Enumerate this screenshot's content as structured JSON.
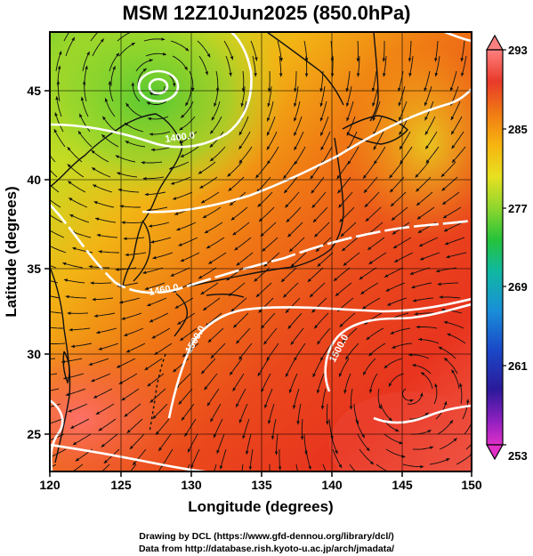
{
  "title": "MSM 12Z10Jun2025 (850.0hPa)",
  "axes": {
    "xlabel": "Longitude (degrees)",
    "ylabel": "Latitude  (degrees)",
    "xticks": [
      "120",
      "125",
      "130",
      "135",
      "140",
      "145",
      "150"
    ],
    "yticks": [
      "25",
      "30",
      "35",
      "40",
      "45"
    ]
  },
  "colorbar": {
    "ticks": [
      "293",
      "285",
      "277",
      "269",
      "261",
      "253"
    ],
    "colors": [
      "#ff8080",
      "#e83a2a",
      "#f07a14",
      "#f6b410",
      "#e8e020",
      "#8fd62e",
      "#26c33a",
      "#10b8a0",
      "#1a8fd8",
      "#1a48c8",
      "#2b1a9a",
      "#9020c0",
      "#e030c8"
    ]
  },
  "contours": [
    {
      "label": "1400.0"
    },
    {
      "label": "1460.0"
    },
    {
      "label": "1500.0"
    },
    {
      "label": "1500.0"
    }
  ],
  "credits": {
    "line1": "Drawing by DCL (https://www.gfd-dennou.org/library/dcl/)",
    "line2": "Data from http://database.rish.kyoto-u.ac.jp/arch/jmadata/"
  }
}
